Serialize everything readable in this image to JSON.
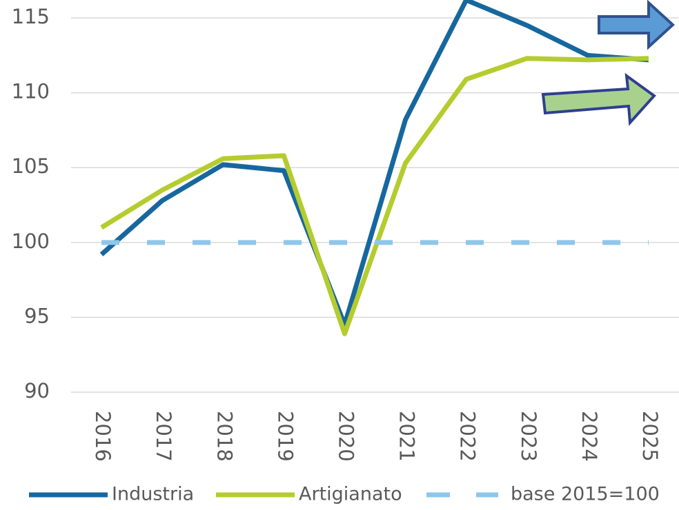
{
  "chart_data": {
    "type": "line",
    "categories": [
      "2016",
      "2017",
      "2018",
      "2019",
      "2020",
      "2021",
      "2022",
      "2023",
      "2024",
      "2025"
    ],
    "series": [
      {
        "name": "Industria",
        "color": "#17679f",
        "values": [
          99.2,
          102.8,
          105.2,
          104.8,
          94.5,
          108.2,
          116.2,
          114.5,
          112.5,
          112.2
        ]
      },
      {
        "name": "Artigianato",
        "color": "#b5cc2e",
        "values": [
          101,
          103.5,
          105.6,
          105.8,
          93.9,
          105.3,
          110.9,
          112.3,
          112.2,
          112.3
        ]
      },
      {
        "name": "base 2015=100",
        "color": "#8fc6ea",
        "dashed": true,
        "values": [
          100,
          100,
          100,
          100,
          100,
          100,
          100,
          100,
          100,
          100
        ]
      }
    ],
    "ylim": [
      90,
      116.2
    ],
    "yticks": [
      90,
      95,
      100,
      105,
      110,
      115
    ],
    "grid": true,
    "legend": "bottom"
  }
}
